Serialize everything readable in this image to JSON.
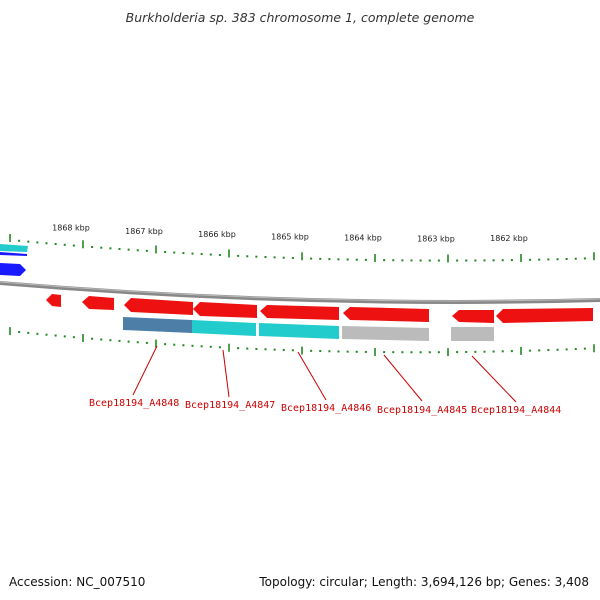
{
  "title": "Burkholderia sp. 383 chromosome 1, complete genome",
  "footer": {
    "accession": "Accession: NC_007510",
    "summary": "Topology: circular; Length: 3,694,126 bp; Genes: 3,408"
  },
  "scale": {
    "unit": "kbp",
    "ticks": [
      "1868 kbp",
      "1867 kbp",
      "1866 kbp",
      "1865 kbp",
      "1864 kbp",
      "1863 kbp",
      "1862 kbp"
    ]
  },
  "colors": {
    "cds_forward": "#ee1111",
    "backbone": "#888888",
    "tick": "#228822",
    "label": "#cc0000",
    "blue_track": "#1a1aff",
    "cyan_track": "#22cccc",
    "steel_track": "#4d7ea8",
    "gray_track": "#bbbbbb"
  },
  "genes": [
    {
      "locus": "Bcep18194_A4848",
      "match_color": "#4d7ea8"
    },
    {
      "locus": "Bcep18194_A4847",
      "match_color": "#22cccc"
    },
    {
      "locus": "Bcep18194_A4846",
      "match_color": "#22cccc"
    },
    {
      "locus": "Bcep18194_A4845",
      "match_color": "#bbbbbb"
    },
    {
      "locus": "Bcep18194_A4844",
      "match_color": "#bbbbbb"
    }
  ]
}
